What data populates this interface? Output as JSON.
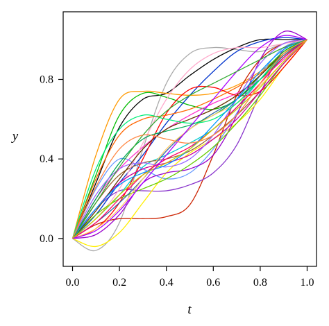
{
  "chart_data": {
    "type": "line",
    "title": "",
    "xlabel": "t",
    "ylabel": "y",
    "xlim": [
      -0.04,
      1.04
    ],
    "ylim": [
      -0.14,
      1.14
    ],
    "grid": false,
    "legend": "none",
    "x_ticks": [
      0.0,
      0.2,
      0.4,
      0.6,
      0.8,
      1.0
    ],
    "x_tick_labels": [
      "0.0",
      "0.2",
      "0.4",
      "0.6",
      "0.8",
      "1.0"
    ],
    "y_ticks": [
      0.0,
      0.4,
      0.8
    ],
    "y_tick_labels": [
      "0.0",
      "0.4",
      "0.8"
    ],
    "x": [
      0,
      0.1,
      0.2,
      0.3,
      0.4,
      0.5,
      0.6,
      0.7,
      0.8,
      0.9,
      1.0
    ],
    "series": [
      {
        "color": "#aaaaaa",
        "values": [
          0,
          -0.06,
          0.08,
          0.45,
          0.78,
          0.93,
          0.96,
          0.95,
          0.94,
          0.98,
          1.0
        ]
      },
      {
        "color": "#000000",
        "values": [
          0,
          0.28,
          0.56,
          0.7,
          0.73,
          0.82,
          0.9,
          0.96,
          1.0,
          1.0,
          1.0
        ]
      },
      {
        "color": "#ff9900",
        "values": [
          0,
          0.42,
          0.7,
          0.74,
          0.73,
          0.72,
          0.73,
          0.77,
          0.84,
          0.93,
          1.0
        ]
      },
      {
        "color": "#cc2200",
        "values": [
          0,
          0.07,
          0.1,
          0.1,
          0.11,
          0.17,
          0.42,
          0.72,
          0.9,
          0.98,
          1.0
        ]
      },
      {
        "color": "#8833cc",
        "values": [
          0,
          0.15,
          0.24,
          0.24,
          0.24,
          0.27,
          0.33,
          0.47,
          0.73,
          0.95,
          1.0
        ]
      },
      {
        "color": "#00bb00",
        "values": [
          0,
          0.32,
          0.62,
          0.73,
          0.71,
          0.67,
          0.65,
          0.7,
          0.82,
          0.94,
          1.0
        ]
      },
      {
        "color": "#0033cc",
        "values": [
          0,
          0.12,
          0.28,
          0.42,
          0.58,
          0.72,
          0.84,
          0.94,
          0.99,
          1.01,
          1.0
        ]
      },
      {
        "color": "#ffee00",
        "values": [
          0,
          -0.04,
          0.03,
          0.18,
          0.33,
          0.43,
          0.5,
          0.58,
          0.7,
          0.86,
          1.0
        ]
      },
      {
        "color": "#ff33cc",
        "values": [
          0,
          0.2,
          0.35,
          0.46,
          0.55,
          0.62,
          0.68,
          0.73,
          0.8,
          0.9,
          1.0
        ]
      },
      {
        "color": "#00cccc",
        "values": [
          0,
          0.1,
          0.22,
          0.36,
          0.42,
          0.48,
          0.55,
          0.66,
          0.8,
          0.93,
          1.0
        ]
      },
      {
        "color": "#996633",
        "values": [
          0,
          0.18,
          0.32,
          0.38,
          0.4,
          0.44,
          0.52,
          0.62,
          0.74,
          0.88,
          1.0
        ]
      },
      {
        "color": "#ff0000",
        "values": [
          0,
          0.05,
          0.18,
          0.4,
          0.63,
          0.75,
          0.76,
          0.72,
          0.74,
          0.86,
          1.0
        ]
      },
      {
        "color": "#6699ff",
        "values": [
          0,
          0.25,
          0.4,
          0.35,
          0.3,
          0.33,
          0.45,
          0.63,
          0.82,
          0.96,
          1.0
        ]
      },
      {
        "color": "#9900cc",
        "values": [
          0,
          0.02,
          0.12,
          0.28,
          0.33,
          0.35,
          0.42,
          0.62,
          0.9,
          1.04,
          1.0
        ]
      },
      {
        "color": "#ffaacc",
        "values": [
          0,
          0.1,
          0.25,
          0.48,
          0.7,
          0.85,
          0.93,
          0.96,
          0.96,
          0.98,
          1.0
        ]
      },
      {
        "color": "#66cc00",
        "values": [
          0,
          0.12,
          0.2,
          0.25,
          0.3,
          0.37,
          0.46,
          0.58,
          0.72,
          0.88,
          1.0
        ]
      },
      {
        "color": "#ff6600",
        "values": [
          0,
          0.3,
          0.52,
          0.6,
          0.62,
          0.65,
          0.7,
          0.76,
          0.83,
          0.92,
          1.0
        ]
      },
      {
        "color": "#3366aa",
        "values": [
          0,
          0.08,
          0.18,
          0.3,
          0.44,
          0.55,
          0.63,
          0.7,
          0.8,
          0.92,
          1.0
        ]
      },
      {
        "color": "#cc0099",
        "values": [
          0,
          0.15,
          0.28,
          0.35,
          0.38,
          0.42,
          0.5,
          0.6,
          0.74,
          0.88,
          1.0
        ]
      },
      {
        "color": "#00aa55",
        "values": [
          0,
          0.2,
          0.38,
          0.5,
          0.54,
          0.57,
          0.62,
          0.7,
          0.8,
          0.91,
          1.0
        ]
      },
      {
        "color": "#ffcc66",
        "values": [
          0,
          0.05,
          0.15,
          0.3,
          0.45,
          0.55,
          0.62,
          0.68,
          0.77,
          0.89,
          1.0
        ]
      },
      {
        "color": "#9966ff",
        "values": [
          0,
          0.22,
          0.35,
          0.38,
          0.36,
          0.4,
          0.52,
          0.7,
          0.88,
          0.98,
          1.0
        ]
      },
      {
        "color": "#663300",
        "values": [
          0,
          0.14,
          0.3,
          0.45,
          0.55,
          0.6,
          0.65,
          0.72,
          0.82,
          0.93,
          1.0
        ]
      },
      {
        "color": "#00ee77",
        "values": [
          0,
          0.35,
          0.55,
          0.62,
          0.6,
          0.58,
          0.6,
          0.68,
          0.8,
          0.93,
          1.0
        ]
      },
      {
        "color": "#ff0066",
        "values": [
          0,
          0.08,
          0.2,
          0.32,
          0.4,
          0.46,
          0.55,
          0.66,
          0.78,
          0.91,
          1.0
        ]
      },
      {
        "color": "#0099ff",
        "values": [
          0,
          0.15,
          0.27,
          0.33,
          0.37,
          0.45,
          0.57,
          0.7,
          0.84,
          0.95,
          1.0
        ]
      },
      {
        "color": "#cccc00",
        "values": [
          0,
          0.1,
          0.22,
          0.32,
          0.38,
          0.45,
          0.55,
          0.65,
          0.76,
          0.89,
          1.0
        ]
      },
      {
        "color": "#aa00ff",
        "values": [
          0,
          0.04,
          0.14,
          0.28,
          0.42,
          0.56,
          0.7,
          0.84,
          0.96,
          1.02,
          1.0
        ]
      },
      {
        "color": "#33aa33",
        "values": [
          0,
          0.18,
          0.36,
          0.52,
          0.64,
          0.72,
          0.78,
          0.84,
          0.9,
          0.96,
          1.0
        ]
      },
      {
        "color": "#ff8844",
        "values": [
          0,
          0.26,
          0.45,
          0.52,
          0.5,
          0.48,
          0.52,
          0.62,
          0.78,
          0.93,
          1.0
        ]
      }
    ]
  }
}
